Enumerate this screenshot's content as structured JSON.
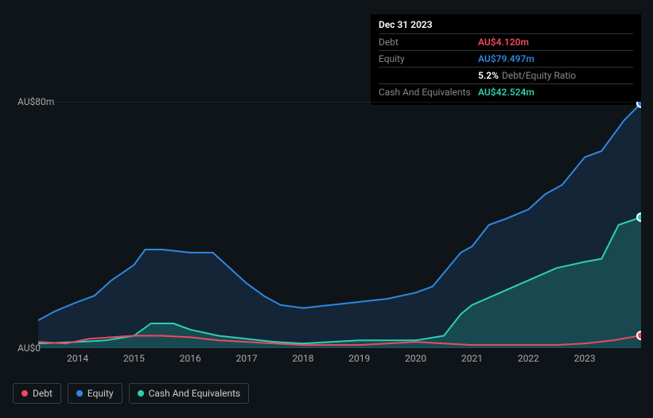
{
  "tooltip": {
    "date": "Dec 31 2023",
    "rows": [
      {
        "label": "Debt",
        "value": "AU$4.120m",
        "color": "#ef4a5b"
      },
      {
        "label": "Equity",
        "value": "AU$79.497m",
        "color": "#2f87e0"
      },
      {
        "label": "",
        "value": "5.2%",
        "suffix": "Debt/Equity Ratio",
        "color": "#ffffff"
      },
      {
        "label": "Cash And Equivalents",
        "value": "AU$42.524m",
        "color": "#2dcfb1"
      }
    ]
  },
  "chart": {
    "ylim": [
      0,
      80
    ],
    "y_ticks": [
      {
        "v": 80,
        "label": "AU$80m"
      },
      {
        "v": 0,
        "label": "AU$0"
      }
    ],
    "x_years": [
      2014,
      2015,
      2016,
      2017,
      2018,
      2019,
      2020,
      2021,
      2022,
      2023
    ],
    "x_range": [
      2013.3,
      2024.0
    ],
    "background": "#0f1419",
    "grid_color": "#2a2f36",
    "series": [
      {
        "name": "Equity",
        "color": "#2f87e0",
        "fill_opacity": 0.15,
        "area": true,
        "line_width": 2,
        "points": [
          [
            2013.3,
            9
          ],
          [
            2013.6,
            12
          ],
          [
            2014.0,
            15
          ],
          [
            2014.3,
            17
          ],
          [
            2014.6,
            22
          ],
          [
            2015.0,
            27
          ],
          [
            2015.2,
            32
          ],
          [
            2015.5,
            32
          ],
          [
            2016.0,
            31
          ],
          [
            2016.4,
            31
          ],
          [
            2016.7,
            26
          ],
          [
            2017.0,
            21
          ],
          [
            2017.3,
            17
          ],
          [
            2017.6,
            14
          ],
          [
            2018.0,
            13
          ],
          [
            2018.5,
            14
          ],
          [
            2019.0,
            15
          ],
          [
            2019.5,
            16
          ],
          [
            2020.0,
            18
          ],
          [
            2020.3,
            20
          ],
          [
            2020.8,
            31
          ],
          [
            2021.0,
            33
          ],
          [
            2021.3,
            40
          ],
          [
            2021.6,
            42
          ],
          [
            2022.0,
            45
          ],
          [
            2022.3,
            50
          ],
          [
            2022.6,
            53
          ],
          [
            2023.0,
            62
          ],
          [
            2023.3,
            64
          ],
          [
            2023.7,
            74
          ],
          [
            2024.0,
            79.5
          ]
        ]
      },
      {
        "name": "Cash And Equivalents",
        "color": "#2dcfb1",
        "fill_opacity": 0.22,
        "area": true,
        "line_width": 2,
        "points": [
          [
            2013.3,
            1.5
          ],
          [
            2014.0,
            2
          ],
          [
            2014.5,
            2.5
          ],
          [
            2015.0,
            4
          ],
          [
            2015.3,
            8
          ],
          [
            2015.7,
            8
          ],
          [
            2016.0,
            6
          ],
          [
            2016.5,
            4
          ],
          [
            2017.0,
            3
          ],
          [
            2017.5,
            2
          ],
          [
            2018.0,
            1.5
          ],
          [
            2018.5,
            2
          ],
          [
            2019.0,
            2.5
          ],
          [
            2019.5,
            2.5
          ],
          [
            2020.0,
            2.5
          ],
          [
            2020.5,
            4
          ],
          [
            2020.8,
            11
          ],
          [
            2021.0,
            14
          ],
          [
            2021.5,
            18
          ],
          [
            2022.0,
            22
          ],
          [
            2022.5,
            26
          ],
          [
            2023.0,
            28
          ],
          [
            2023.3,
            29
          ],
          [
            2023.6,
            40
          ],
          [
            2024.0,
            42.5
          ]
        ]
      },
      {
        "name": "Debt",
        "color": "#ef4a5b",
        "fill_opacity": 0.0,
        "area": false,
        "line_width": 2,
        "points": [
          [
            2013.3,
            2
          ],
          [
            2013.8,
            1.5
          ],
          [
            2014.2,
            3
          ],
          [
            2014.6,
            3.5
          ],
          [
            2015.0,
            4
          ],
          [
            2015.5,
            4
          ],
          [
            2016.0,
            3.5
          ],
          [
            2016.5,
            2.5
          ],
          [
            2017.0,
            2
          ],
          [
            2017.5,
            1.5
          ],
          [
            2018.0,
            1
          ],
          [
            2018.5,
            1
          ],
          [
            2019.0,
            1
          ],
          [
            2019.5,
            1.5
          ],
          [
            2020.0,
            2
          ],
          [
            2020.5,
            1.5
          ],
          [
            2021.0,
            1
          ],
          [
            2021.5,
            1
          ],
          [
            2022.0,
            1
          ],
          [
            2022.5,
            1
          ],
          [
            2023.0,
            1.5
          ],
          [
            2023.5,
            2.5
          ],
          [
            2024.0,
            4.1
          ]
        ]
      }
    ],
    "legend": [
      {
        "label": "Debt",
        "color": "#ef4a5b"
      },
      {
        "label": "Equity",
        "color": "#2f87e0"
      },
      {
        "label": "Cash And Equivalents",
        "color": "#2dcfb1"
      }
    ]
  }
}
